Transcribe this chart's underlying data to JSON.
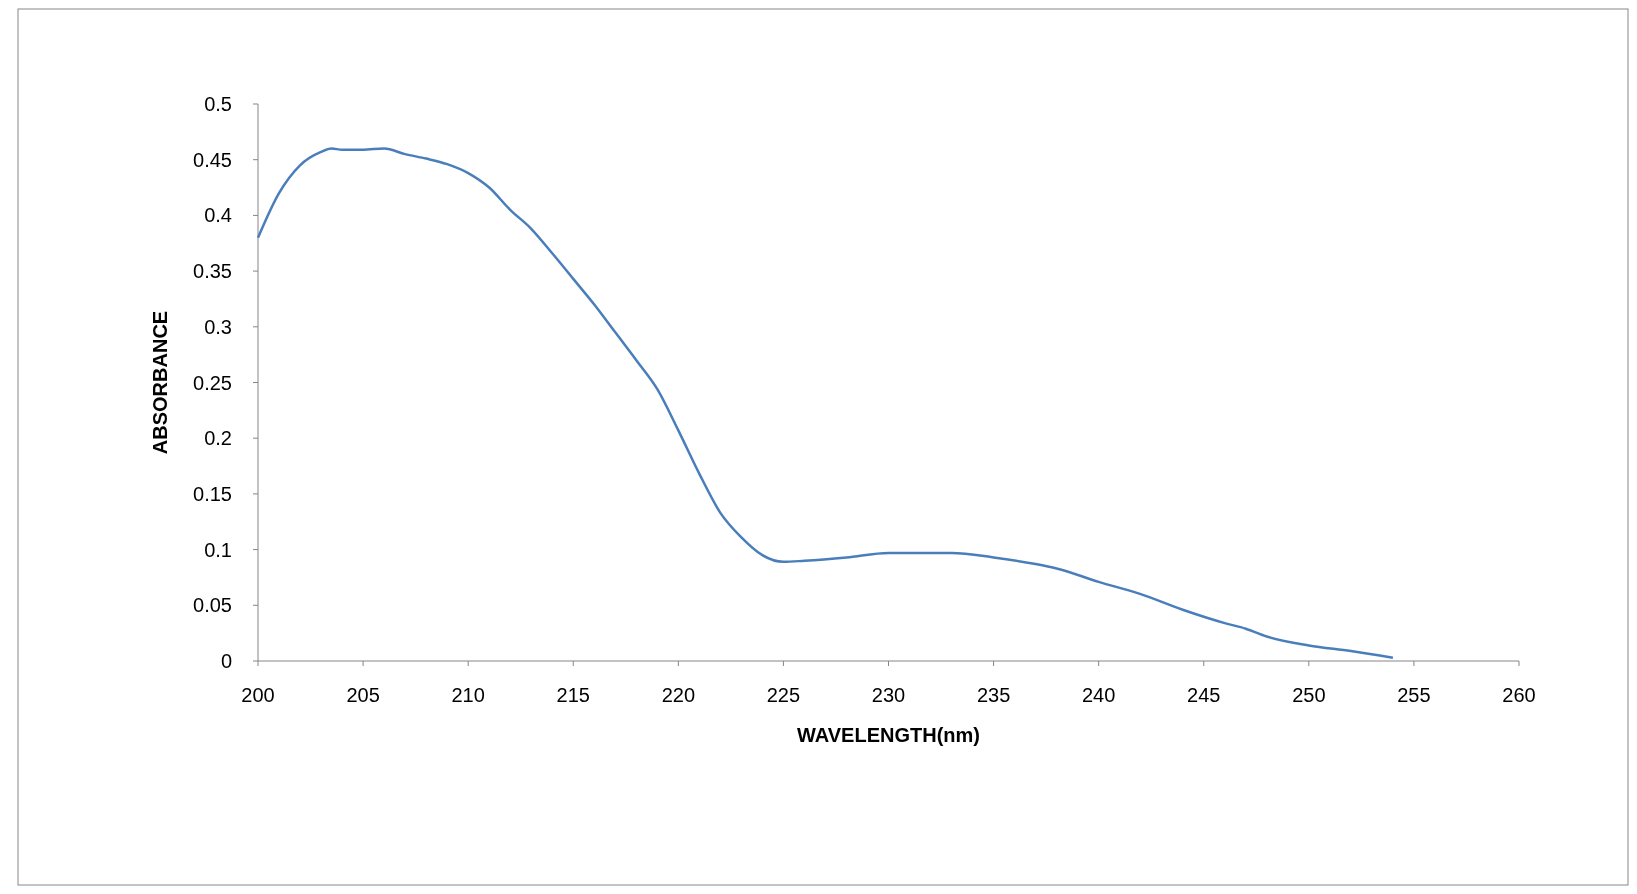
{
  "chart_data": {
    "type": "line",
    "xlabel": "WAVELENGTH(nm)",
    "ylabel": "ABSORBANCE",
    "xlim": [
      200,
      260
    ],
    "xticks": [
      200,
      205,
      210,
      215,
      220,
      225,
      230,
      235,
      240,
      245,
      250,
      255,
      260
    ],
    "ylim": [
      0,
      0.5
    ],
    "yticks": [
      0,
      0.05,
      0.1,
      0.15,
      0.2,
      0.25,
      0.3,
      0.35,
      0.4,
      0.45,
      0.5
    ],
    "series": [
      {
        "color": "#4a7ebb",
        "x": [
          200,
          201,
          202,
          203,
          203.5,
          204,
          205,
          206,
          207,
          208,
          209,
          210,
          211,
          212,
          213,
          214,
          215,
          216,
          217,
          218,
          219,
          220,
          221,
          222,
          223,
          224,
          225,
          226,
          228,
          230,
          232,
          233,
          235,
          237,
          238,
          240,
          242,
          244,
          246,
          247,
          248,
          250,
          252,
          254
        ],
        "values": [
          0.38,
          0.42,
          0.445,
          0.457,
          0.46,
          0.459,
          0.459,
          0.46,
          0.455,
          0.451,
          0.446,
          0.438,
          0.425,
          0.405,
          0.388,
          0.366,
          0.343,
          0.32,
          0.295,
          0.27,
          0.244,
          0.207,
          0.168,
          0.133,
          0.111,
          0.095,
          0.089,
          0.09,
          0.093,
          0.097,
          0.097,
          0.097,
          0.093,
          0.087,
          0.083,
          0.071,
          0.06,
          0.046,
          0.034,
          0.029,
          0.022,
          0.014,
          0.009,
          0.003
        ]
      }
    ]
  }
}
